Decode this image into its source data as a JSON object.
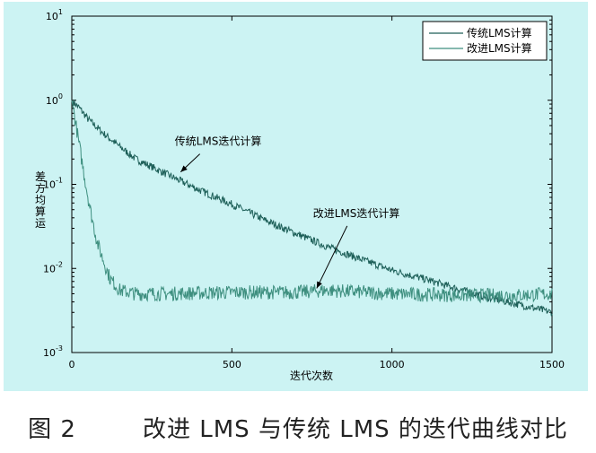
{
  "chart_data": {
    "type": "line",
    "yscale": "log",
    "xlabel": "迭代次数",
    "ylabel": "差方均算运",
    "xlim": [
      0,
      1500
    ],
    "ylim": [
      0.001,
      10
    ],
    "x_ticks": [
      {
        "value": 0,
        "label": "0"
      },
      {
        "value": 500,
        "label": "500"
      },
      {
        "value": 1000,
        "label": "1000"
      },
      {
        "value": 1500,
        "label": "1500"
      }
    ],
    "y_ticks": [
      {
        "value": 0.001,
        "base": "10",
        "exp": "-3"
      },
      {
        "value": 0.01,
        "base": "10",
        "exp": "-2"
      },
      {
        "value": 0.1,
        "base": "10",
        "exp": "-1"
      },
      {
        "value": 1,
        "base": "10",
        "exp": "0"
      },
      {
        "value": 10,
        "base": "10",
        "exp": "1"
      }
    ],
    "legend_position": "top-right",
    "series": [
      {
        "name": "传统LMS计算",
        "color": "#1d5f58",
        "x": [
          0,
          25,
          50,
          100,
          150,
          200,
          300,
          400,
          500,
          600,
          700,
          800,
          900,
          1000,
          1100,
          1200,
          1300,
          1400,
          1500
        ],
        "y": [
          1.0,
          0.8,
          0.6,
          0.4,
          0.28,
          0.2,
          0.13,
          0.085,
          0.058,
          0.038,
          0.026,
          0.018,
          0.013,
          0.0095,
          0.0075,
          0.0058,
          0.0045,
          0.0037,
          0.003
        ]
      },
      {
        "name": "改进LMS计算",
        "color": "#3e8f7f",
        "x": [
          0,
          10,
          20,
          40,
          60,
          80,
          100,
          120,
          150,
          200,
          300,
          500,
          700,
          800,
          1000,
          1200,
          1400,
          1500
        ],
        "y": [
          1.0,
          0.6,
          0.35,
          0.12,
          0.045,
          0.02,
          0.012,
          0.0075,
          0.0055,
          0.005,
          0.005,
          0.0052,
          0.0052,
          0.0055,
          0.005,
          0.0048,
          0.0048,
          0.005
        ]
      }
    ],
    "annotations": [
      {
        "text": "传统LMS迭代计算",
        "from_x": 400,
        "from_y": 0.23,
        "to_x": 340,
        "to_y": 0.14
      },
      {
        "text": "改进LMS迭代计算",
        "from_x": 860,
        "from_y": 0.032,
        "to_x": 765,
        "to_y": 0.0058
      }
    ]
  },
  "caption": "图 2        改进 LMS 与传统 LMS 的迭代曲线对比"
}
